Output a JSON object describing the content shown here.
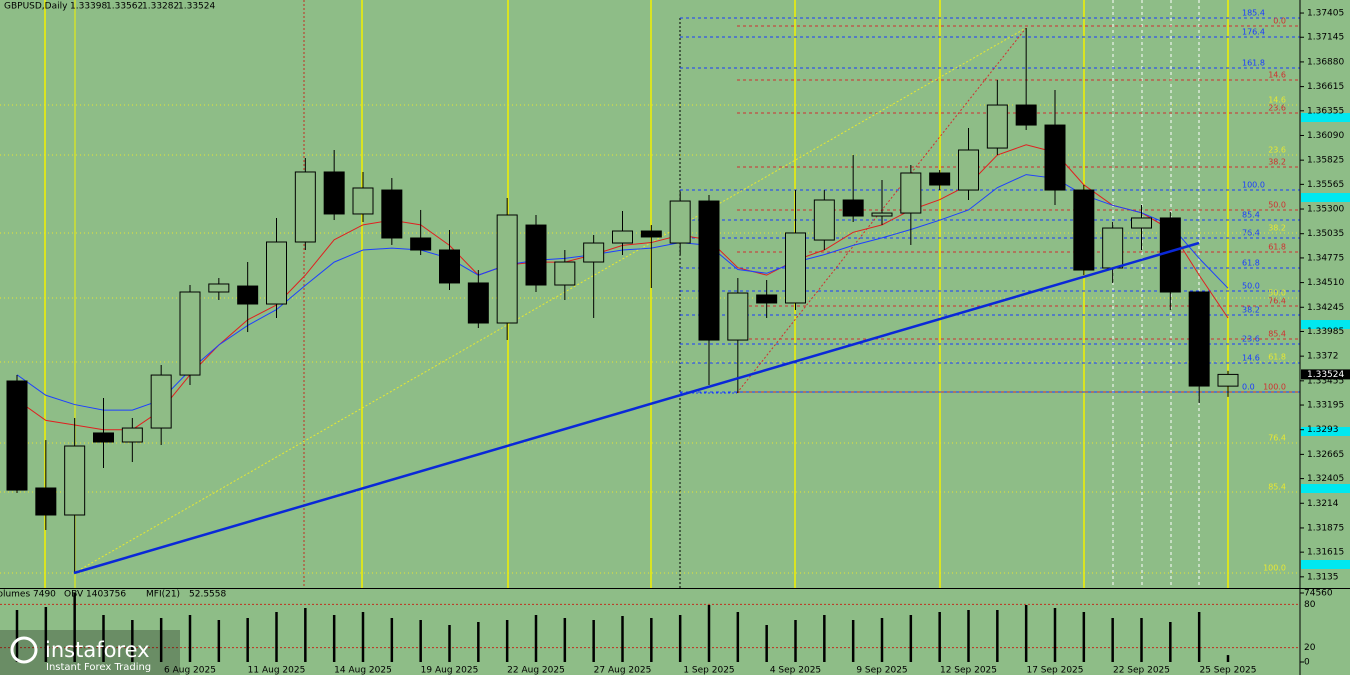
{
  "chart_data": {
    "type": "candlestick",
    "title": "GBPUSD,Daily",
    "categories": [
      null,
      null,
      null,
      null,
      null,
      null,
      "6 Aug 2025",
      null,
      null,
      "11 Aug 2025",
      null,
      null,
      "14 Aug 2025",
      null,
      null,
      "19 Aug 2025",
      null,
      null,
      "22 Aug 2025",
      null,
      null,
      "27 Aug 2025",
      null,
      null,
      "1 Sep 2025",
      null,
      null,
      "4 Sep 2025",
      null,
      null,
      "9 Sep 2025",
      null,
      null,
      "12 Sep 2025",
      null,
      null,
      "17 Sep 2025",
      null,
      null,
      "22 Sep 2025",
      null,
      null,
      "25 Sep 2025"
    ],
    "open": [
      1.33453,
      1.32304,
      1.32014,
      1.32895,
      1.32798,
      1.32948,
      1.33517,
      1.34409,
      1.34473,
      1.3428,
      1.34946,
      1.35698,
      1.35247,
      1.35504,
      1.34989,
      1.3486,
      1.34506,
      1.34076,
      1.35128,
      1.34484,
      1.34731,
      1.34935,
      1.35064,
      1.34935,
      1.35386,
      1.33893,
      1.34377,
      1.34291,
      1.34967,
      1.35397,
      1.35225,
      1.35257,
      1.35687,
      1.35504,
      1.35955,
      1.36417,
      1.36202,
      1.35504,
      1.34667,
      1.35096,
      1.35204,
      1.34409,
      1.33398
    ],
    "high": [
      1.33517,
      1.32819,
      1.33056,
      1.3327,
      1.33056,
      1.33625,
      1.34484,
      1.34559,
      1.34731,
      1.35204,
      1.35848,
      1.35934,
      1.35698,
      1.35633,
      1.3529,
      1.35075,
      1.34645,
      1.35418,
      1.35236,
      1.3486,
      1.35021,
      1.35279,
      1.35128,
      1.35483,
      1.35451,
      1.34559,
      1.34538,
      1.35504,
      1.35504,
      1.3588,
      1.35612,
      1.35773,
      1.35719,
      1.3617,
      1.36686,
      1.37244,
      1.36578,
      1.35558,
      1.35161,
      1.35343,
      1.35268,
      1.34409,
      1.33562
    ],
    "low": [
      1.3225,
      1.31853,
      1.31391,
      1.32519,
      1.32583,
      1.32766,
      1.3341,
      1.34323,
      1.33979,
      1.3413,
      1.3486,
      1.35182,
      1.35161,
      1.34914,
      1.34806,
      1.3443,
      1.34022,
      1.33893,
      1.34409,
      1.34323,
      1.3413,
      1.34806,
      1.34452,
      1.34806,
      1.3341,
      1.33324,
      1.3413,
      1.34216,
      1.3486,
      1.35161,
      1.35128,
      1.34914,
      1.35504,
      1.35397,
      1.3588,
      1.36149,
      1.35343,
      1.34591,
      1.34506,
      1.3486,
      1.34216,
      1.33217,
      1.33282
    ],
    "close": [
      1.32282,
      1.32014,
      1.32755,
      1.32798,
      1.32948,
      1.33517,
      1.34409,
      1.34495,
      1.3428,
      1.34946,
      1.35698,
      1.35247,
      1.35526,
      1.34989,
      1.3486,
      1.34506,
      1.34076,
      1.35236,
      1.34484,
      1.34731,
      1.34935,
      1.35064,
      1.35,
      1.35386,
      1.33893,
      1.34398,
      1.34291,
      1.35043,
      1.35397,
      1.35225,
      1.35257,
      1.35687,
      1.35558,
      1.35934,
      1.36417,
      1.36202,
      1.35504,
      1.34645,
      1.35096,
      1.35204,
      1.34409,
      1.33399,
      1.33524
    ],
    "up_color": "#8fbc86",
    "down_color": "#000000",
    "wick_color": "#000000",
    "ylim": [
      1.3123,
      1.37545
    ],
    "yticks": [
      1.37405,
      1.37145,
      {
        "value": 1.3688,
        "label": "1.36880"
      },
      1.36615,
      1.36355,
      {
        "value": 1.3609,
        "label": "1.36090"
      },
      1.35825,
      1.35565,
      {
        "value": 1.353,
        "label": "1.35300"
      },
      1.35035,
      1.34775,
      {
        "value": 1.3451,
        "label": "1.34510"
      },
      1.34245,
      1.33985,
      1.3372,
      1.33455,
      1.33195,
      1.3293,
      1.32665,
      1.32405,
      1.3214,
      1.31875,
      1.31615,
      1.3135
    ],
    "grid": false,
    "series": [
      {
        "color": "#e02020",
        "values": [
          1.3325,
          1.3303,
          1.3298,
          1.3293,
          1.3293,
          1.3314,
          1.3352,
          1.3384,
          1.3411,
          1.3427,
          1.3459,
          1.3497,
          1.3513,
          1.3518,
          1.3513,
          1.3491,
          1.3459,
          1.347,
          1.3473,
          1.3473,
          1.3481,
          1.3491,
          1.3494,
          1.3502,
          1.3497,
          1.3467,
          1.3459,
          1.3475,
          1.3486,
          1.3505,
          1.3513,
          1.3529,
          1.354,
          1.3556,
          1.3588,
          1.3599,
          1.3591,
          1.3556,
          1.3534,
          1.3526,
          1.3508,
          1.3459,
          1.3413
        ]
      },
      {
        "color": "#1e40ff",
        "values": [
          1.3352,
          1.333,
          1.332,
          1.3314,
          1.3314,
          1.3325,
          1.3357,
          1.3384,
          1.3405,
          1.3422,
          1.3448,
          1.3473,
          1.3486,
          1.3488,
          1.3486,
          1.3477,
          1.3459,
          1.347,
          1.3475,
          1.3477,
          1.3481,
          1.3486,
          1.3488,
          1.3494,
          1.3491,
          1.3465,
          1.3461,
          1.3473,
          1.3481,
          1.3491,
          1.3499,
          1.3508,
          1.3518,
          1.3529,
          1.3553,
          1.3567,
          1.3563,
          1.3545,
          1.3534,
          1.3526,
          1.3513,
          1.3477,
          1.3445
        ]
      }
    ],
    "fib_groups": [
      {
        "color": "#1a3cff",
        "levels": [
          {
            "value": 1.37352,
            "label": "185.4"
          },
          {
            "value": 1.37148,
            "label": "176.4"
          },
          {
            "value": 1.36815,
            "label": "161.8"
          },
          {
            "value": 1.35504,
            "label": "100.0"
          },
          {
            "value": 1.35182,
            "label": "85.4"
          },
          {
            "value": 1.34989,
            "label": "76.4"
          },
          {
            "value": 1.34667,
            "label": "61.8"
          },
          {
            "value": 1.3442,
            "label": "50.0"
          },
          {
            "value": 1.34162,
            "label": "38.2"
          },
          {
            "value": 1.3385,
            "label": "23.6"
          },
          {
            "value": 1.33646,
            "label": "14.6"
          },
          {
            "value": 1.33335,
            "label": "0.0"
          }
        ]
      },
      {
        "color": "#d03030",
        "levels": [
          {
            "value": 1.37266,
            "label": "0.0"
          },
          {
            "value": 1.36686,
            "label": "14.6"
          },
          {
            "value": 1.36331,
            "label": "23.6"
          },
          {
            "value": 1.35751,
            "label": "38.2"
          },
          {
            "value": 1.3529,
            "label": "50.0"
          },
          {
            "value": 1.34838,
            "label": "61.8"
          },
          {
            "value": 1.34259,
            "label": "76.4"
          },
          {
            "value": 1.33904,
            "label": "85.4"
          },
          {
            "value": 1.33335,
            "label": "100.0"
          }
        ]
      },
      {
        "color": "#e8e830",
        "levels": [
          {
            "value": 1.36417,
            "label": "14.6"
          },
          {
            "value": 1.3588,
            "label": "23.6"
          },
          {
            "value": 1.35043,
            "label": "38.2"
          },
          {
            "value": 1.34345,
            "label": "50.0"
          },
          {
            "value": 1.33657,
            "label": "61.8"
          },
          {
            "value": 1.32787,
            "label": "76.4"
          },
          {
            "value": 1.32261,
            "label": "85.4"
          },
          {
            "value": 1.31391,
            "label": "100.0"
          }
        ]
      }
    ],
    "volume_label": "Volumes",
    "volumes": [
      56190,
      59430,
      74560,
      50790,
      45390,
      47550,
      50790,
      45390,
      47550,
      54030,
      58350,
      50790,
      54030,
      47550,
      45390,
      39980,
      43220,
      45390,
      50790,
      47550,
      45390,
      49710,
      47550,
      50790,
      61590,
      54030,
      39980,
      45390,
      50790,
      45390,
      47550,
      50790,
      54030,
      56190,
      56190,
      61590,
      58350,
      54030,
      47550,
      47550,
      43220,
      54030,
      7490
    ],
    "volume_ylim": [
      0,
      74560
    ],
    "volume_yticks": [
      0,
      74560
    ],
    "obv_label": "OBV",
    "obv": 1403756,
    "mfi_label": "MFI(21)",
    "mfi": 52.5558,
    "mfi_ylim": [
      0,
      100
    ],
    "mfi_yticks": [
      20,
      80
    ],
    "watermark": {
      "brand": "instaforex",
      "tagline": "Instant Forex Trading"
    }
  }
}
